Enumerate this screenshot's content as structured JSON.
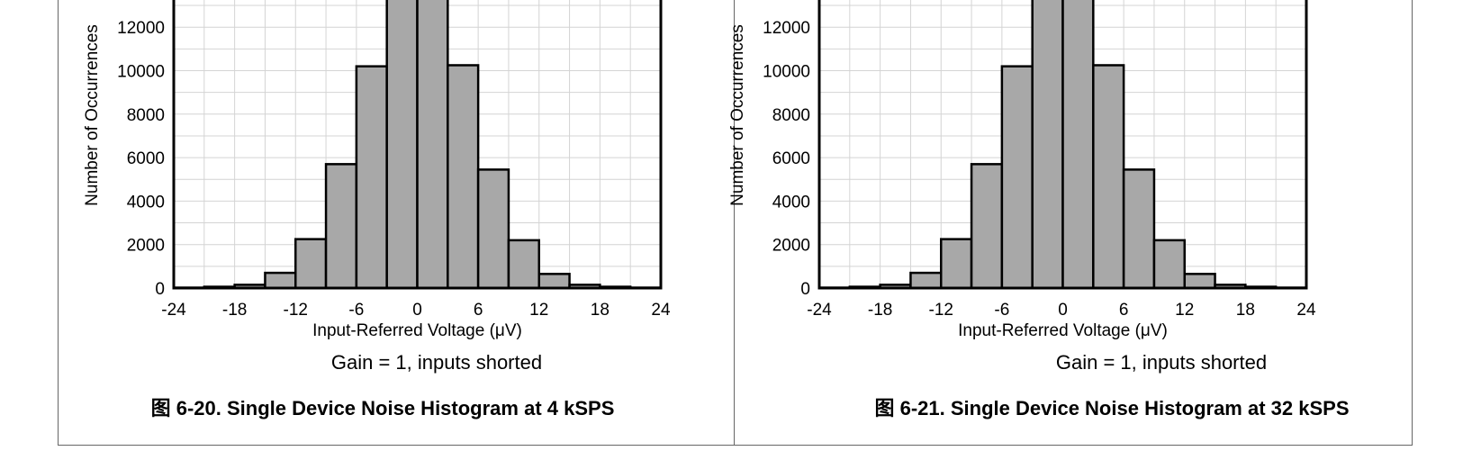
{
  "charts": [
    {
      "caption": "图 6-20. Single Device Noise Histogram at 4 kSPS",
      "subtitle": "Gain = 1, inputs shorted"
    },
    {
      "caption": "图 6-21. Single Device Noise Histogram at 32 kSPS",
      "subtitle": "Gain = 1, inputs shorted"
    }
  ],
  "chart_data": [
    {
      "type": "bar",
      "xlabel": "Input-Referred Voltage (μV)",
      "ylabel": "Number of Occurrences",
      "xlim": [
        -24,
        24
      ],
      "ylim": [
        0,
        14000
      ],
      "xticks": [
        -24,
        -18,
        -12,
        -6,
        0,
        6,
        12,
        18,
        24
      ],
      "yticks": [
        0,
        2000,
        4000,
        6000,
        8000,
        10000,
        12000
      ],
      "grid": true,
      "bin_width": 3,
      "bin_starts": [
        -24,
        -21,
        -18,
        -15,
        -12,
        -9,
        -6,
        -3,
        0,
        3,
        6,
        9,
        12,
        15,
        18,
        21
      ],
      "values": [
        20,
        60,
        150,
        700,
        2250,
        5700,
        10200,
        14000,
        14000,
        10250,
        5450,
        2200,
        650,
        150,
        60,
        20
      ],
      "bar_fill": "#a8a8a8"
    },
    {
      "type": "bar",
      "xlabel": "Input-Referred Voltage (μV)",
      "ylabel": "Number of Occurrences",
      "xlim": [
        -24,
        24
      ],
      "ylim": [
        0,
        14000
      ],
      "xticks": [
        -24,
        -18,
        -12,
        -6,
        0,
        6,
        12,
        18,
        24
      ],
      "yticks": [
        0,
        2000,
        4000,
        6000,
        8000,
        10000,
        12000
      ],
      "grid": true,
      "bin_width": 3,
      "bin_starts": [
        -24,
        -21,
        -18,
        -15,
        -12,
        -9,
        -6,
        -3,
        0,
        3,
        6,
        9,
        12,
        15,
        18,
        21
      ],
      "values": [
        20,
        60,
        150,
        700,
        2250,
        5700,
        10200,
        14000,
        14000,
        10250,
        5450,
        2200,
        650,
        150,
        60,
        20
      ],
      "bar_fill": "#a8a8a8"
    }
  ]
}
